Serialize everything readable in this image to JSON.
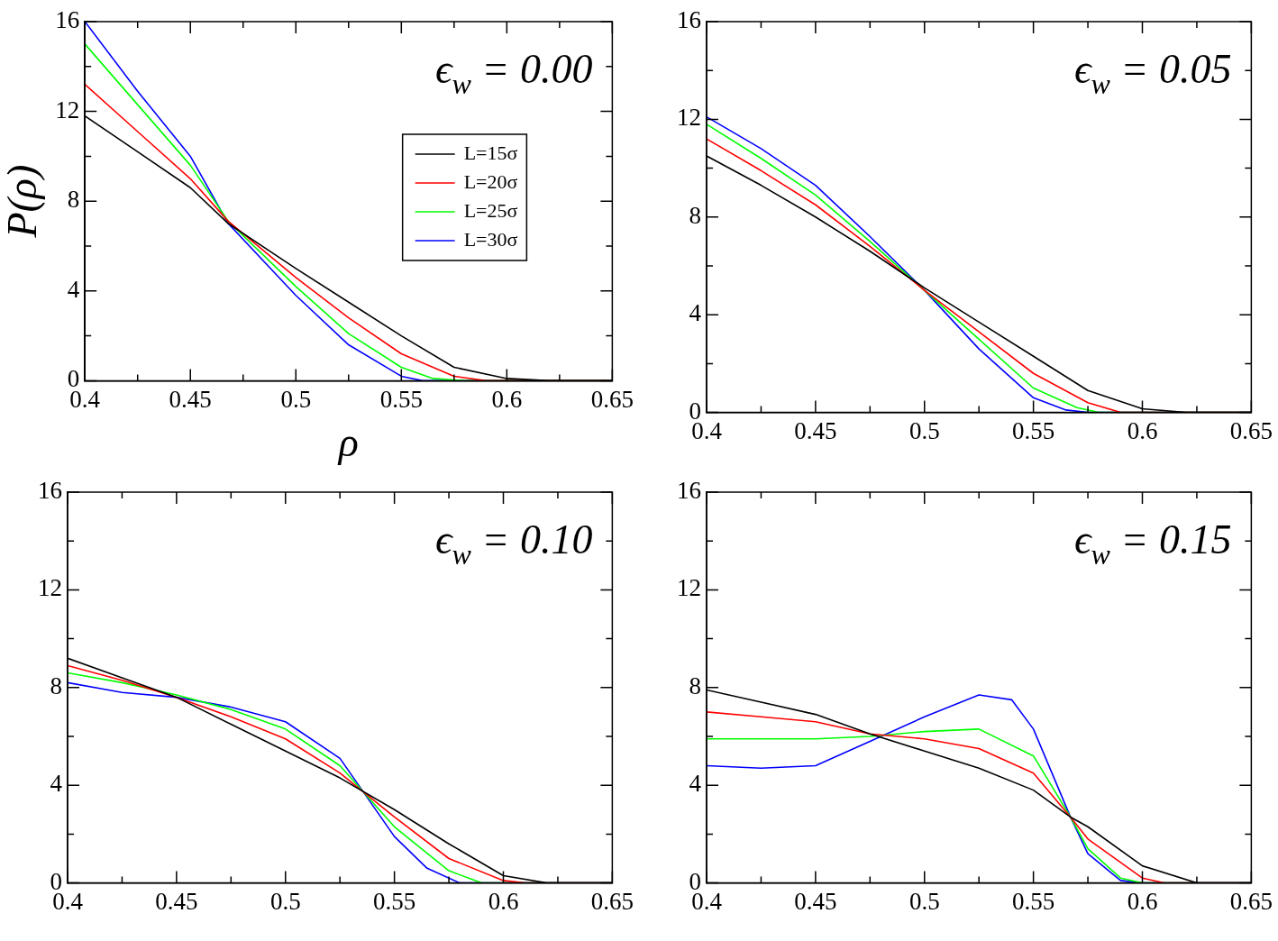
{
  "chart_data": [
    {
      "type": "line",
      "xlabel": "ρ",
      "ylabel": "P(ρ)",
      "annotations": [
        "ϵ$_{w}$ = 0.00"
      ],
      "xlim": [
        0.4,
        0.65
      ],
      "ylim": [
        0,
        16
      ],
      "xticks": [
        0.4,
        {
          "value": 0.425,
          "label": null
        },
        0.45,
        {
          "value": 0.475,
          "label": null
        },
        0.5,
        {
          "value": 0.525,
          "label": null
        },
        0.55,
        {
          "value": 0.575,
          "label": null
        },
        0.6,
        {
          "value": 0.625,
          "label": null
        },
        0.65
      ],
      "yticks": [
        0,
        {
          "value": 2,
          "label": null
        },
        4,
        {
          "value": 6,
          "label": null
        },
        8,
        {
          "value": 10,
          "label": null
        },
        12,
        {
          "value": 14,
          "label": null
        },
        16
      ],
      "grid": false,
      "legend": "top right",
      "marker": "none",
      "line_style": "solid",
      "series": [
        {
          "name": "L=15σ",
          "color": "#000000",
          "x": [
            0.4,
            0.425,
            0.45,
            0.468,
            0.5,
            0.525,
            0.55,
            0.575,
            0.6,
            0.62,
            0.65
          ],
          "values": [
            11.8,
            10.2,
            8.6,
            7.0,
            5.0,
            3.5,
            2.0,
            0.6,
            0.1,
            0,
            0
          ]
        },
        {
          "name": "L=20σ",
          "color": "#ff0000",
          "x": [
            0.4,
            0.425,
            0.45,
            0.468,
            0.5,
            0.525,
            0.55,
            0.575,
            0.59,
            0.65
          ],
          "values": [
            13.2,
            11.1,
            9.0,
            7.1,
            4.6,
            2.8,
            1.2,
            0.2,
            0,
            0
          ]
        },
        {
          "name": "L=25σ",
          "color": "#00ff00",
          "x": [
            0.4,
            0.425,
            0.45,
            0.468,
            0.5,
            0.525,
            0.55,
            0.565,
            0.58,
            0.65
          ],
          "values": [
            15.0,
            12.3,
            9.6,
            7.1,
            4.2,
            2.1,
            0.6,
            0.1,
            0,
            0
          ]
        },
        {
          "name": "L=30σ",
          "color": "#0000ff",
          "x": [
            0.4,
            0.425,
            0.45,
            0.468,
            0.5,
            0.525,
            0.55,
            0.56,
            0.65
          ],
          "values": [
            16.0,
            12.9,
            10.0,
            7.0,
            3.8,
            1.6,
            0.2,
            0,
            0
          ]
        }
      ]
    },
    {
      "type": "line",
      "annotations": [
        "ϵ$_{w}$ = 0.05"
      ],
      "xlim": [
        0.4,
        0.65
      ],
      "ylim": [
        0,
        16
      ],
      "xticks": [
        0.4,
        {
          "value": 0.425,
          "label": null
        },
        0.45,
        {
          "value": 0.475,
          "label": null
        },
        0.5,
        {
          "value": 0.525,
          "label": null
        },
        0.55,
        {
          "value": 0.575,
          "label": null
        },
        0.6,
        {
          "value": 0.625,
          "label": null
        },
        0.65
      ],
      "yticks": [
        0,
        {
          "value": 2,
          "label": null
        },
        4,
        {
          "value": 6,
          "label": null
        },
        8,
        {
          "value": 10,
          "label": null
        },
        12,
        {
          "value": 14,
          "label": null
        },
        16
      ],
      "grid": false,
      "marker": "none",
      "line_style": "solid",
      "series": [
        {
          "color": "#000000",
          "x": [
            0.4,
            0.425,
            0.45,
            0.475,
            0.5,
            0.525,
            0.55,
            0.575,
            0.6,
            0.62,
            0.65
          ],
          "values": [
            10.5,
            9.3,
            8.0,
            6.6,
            5.1,
            3.7,
            2.3,
            0.9,
            0.15,
            0,
            0
          ]
        },
        {
          "color": "#ff0000",
          "x": [
            0.4,
            0.425,
            0.45,
            0.475,
            0.5,
            0.525,
            0.55,
            0.575,
            0.59,
            0.65
          ],
          "values": [
            11.2,
            9.9,
            8.5,
            6.8,
            5.0,
            3.3,
            1.6,
            0.4,
            0,
            0
          ]
        },
        {
          "color": "#00ff00",
          "x": [
            0.4,
            0.425,
            0.45,
            0.475,
            0.5,
            0.525,
            0.55,
            0.57,
            0.58,
            0.65
          ],
          "values": [
            11.8,
            10.4,
            8.9,
            7.0,
            5.0,
            3.0,
            1.0,
            0.2,
            0,
            0
          ]
        },
        {
          "color": "#0000ff",
          "x": [
            0.4,
            0.425,
            0.45,
            0.475,
            0.5,
            0.525,
            0.55,
            0.565,
            0.575,
            0.65
          ],
          "values": [
            12.1,
            10.8,
            9.3,
            7.2,
            5.0,
            2.6,
            0.6,
            0.1,
            0,
            0
          ]
        }
      ]
    },
    {
      "type": "line",
      "annotations": [
        "ϵ$_{w}$ = 0.10"
      ],
      "xlim": [
        0.4,
        0.65
      ],
      "ylim": [
        0,
        16
      ],
      "xticks": [
        0.4,
        {
          "value": 0.425,
          "label": null
        },
        0.45,
        {
          "value": 0.475,
          "label": null
        },
        0.5,
        {
          "value": 0.525,
          "label": null
        },
        0.55,
        {
          "value": 0.575,
          "label": null
        },
        0.6,
        {
          "value": 0.625,
          "label": null
        },
        0.65
      ],
      "yticks": [
        0,
        {
          "value": 2,
          "label": null
        },
        4,
        {
          "value": 6,
          "label": null
        },
        8,
        {
          "value": 10,
          "label": null
        },
        12,
        {
          "value": 14,
          "label": null
        },
        16
      ],
      "grid": false,
      "marker": "none",
      "line_style": "solid",
      "series": [
        {
          "color": "#000000",
          "x": [
            0.4,
            0.425,
            0.45,
            0.475,
            0.5,
            0.525,
            0.55,
            0.575,
            0.6,
            0.62,
            0.65
          ],
          "values": [
            9.2,
            8.4,
            7.6,
            6.5,
            5.4,
            4.3,
            3.0,
            1.6,
            0.3,
            0,
            0
          ]
        },
        {
          "color": "#ff0000",
          "x": [
            0.4,
            0.425,
            0.45,
            0.475,
            0.5,
            0.525,
            0.55,
            0.575,
            0.6,
            0.61,
            0.65
          ],
          "values": [
            8.9,
            8.3,
            7.6,
            6.8,
            5.9,
            4.5,
            2.7,
            1.0,
            0.1,
            0,
            0
          ]
        },
        {
          "color": "#00ff00",
          "x": [
            0.4,
            0.425,
            0.45,
            0.475,
            0.5,
            0.525,
            0.55,
            0.575,
            0.59,
            0.65
          ],
          "values": [
            8.6,
            8.2,
            7.7,
            7.1,
            6.3,
            4.8,
            2.3,
            0.5,
            0,
            0
          ]
        },
        {
          "color": "#0000ff",
          "x": [
            0.4,
            0.425,
            0.45,
            0.475,
            0.5,
            0.525,
            0.55,
            0.565,
            0.58,
            0.65
          ],
          "values": [
            8.2,
            7.8,
            7.6,
            7.2,
            6.6,
            5.1,
            1.9,
            0.6,
            0,
            0
          ]
        }
      ]
    },
    {
      "type": "line",
      "annotations": [
        "ϵ$_{w}$ = 0.15"
      ],
      "xlim": [
        0.4,
        0.65
      ],
      "ylim": [
        0,
        16
      ],
      "xticks": [
        0.4,
        {
          "value": 0.425,
          "label": null
        },
        0.45,
        {
          "value": 0.475,
          "label": null
        },
        0.5,
        {
          "value": 0.525,
          "label": null
        },
        0.55,
        {
          "value": 0.575,
          "label": null
        },
        0.6,
        {
          "value": 0.625,
          "label": null
        },
        0.65
      ],
      "yticks": [
        0,
        {
          "value": 2,
          "label": null
        },
        4,
        {
          "value": 6,
          "label": null
        },
        8,
        {
          "value": 10,
          "label": null
        },
        12,
        {
          "value": 14,
          "label": null
        },
        16
      ],
      "grid": false,
      "marker": "none",
      "line_style": "solid",
      "series": [
        {
          "color": "#000000",
          "x": [
            0.4,
            0.425,
            0.45,
            0.475,
            0.5,
            0.525,
            0.55,
            0.567,
            0.575,
            0.6,
            0.625,
            0.65
          ],
          "values": [
            7.9,
            7.4,
            6.9,
            6.1,
            5.4,
            4.7,
            3.8,
            2.7,
            2.3,
            0.7,
            0,
            0
          ]
        },
        {
          "color": "#ff0000",
          "x": [
            0.4,
            0.425,
            0.45,
            0.475,
            0.5,
            0.525,
            0.55,
            0.567,
            0.575,
            0.6,
            0.61,
            0.65
          ],
          "values": [
            7.0,
            6.8,
            6.6,
            6.1,
            5.9,
            5.5,
            4.5,
            2.7,
            1.8,
            0.2,
            0,
            0
          ]
        },
        {
          "color": "#00ff00",
          "x": [
            0.4,
            0.425,
            0.45,
            0.475,
            0.5,
            0.525,
            0.55,
            0.567,
            0.575,
            0.59,
            0.6,
            0.65
          ],
          "values": [
            5.9,
            5.9,
            5.9,
            6.0,
            6.2,
            6.3,
            5.2,
            2.7,
            1.4,
            0.2,
            0,
            0
          ]
        },
        {
          "color": "#0000ff",
          "x": [
            0.4,
            0.425,
            0.45,
            0.475,
            0.5,
            0.525,
            0.54,
            0.55,
            0.567,
            0.575,
            0.59,
            0.6,
            0.65
          ],
          "values": [
            4.8,
            4.7,
            4.8,
            5.8,
            6.8,
            7.7,
            7.5,
            6.3,
            2.7,
            1.2,
            0.1,
            0,
            0
          ]
        }
      ]
    }
  ]
}
